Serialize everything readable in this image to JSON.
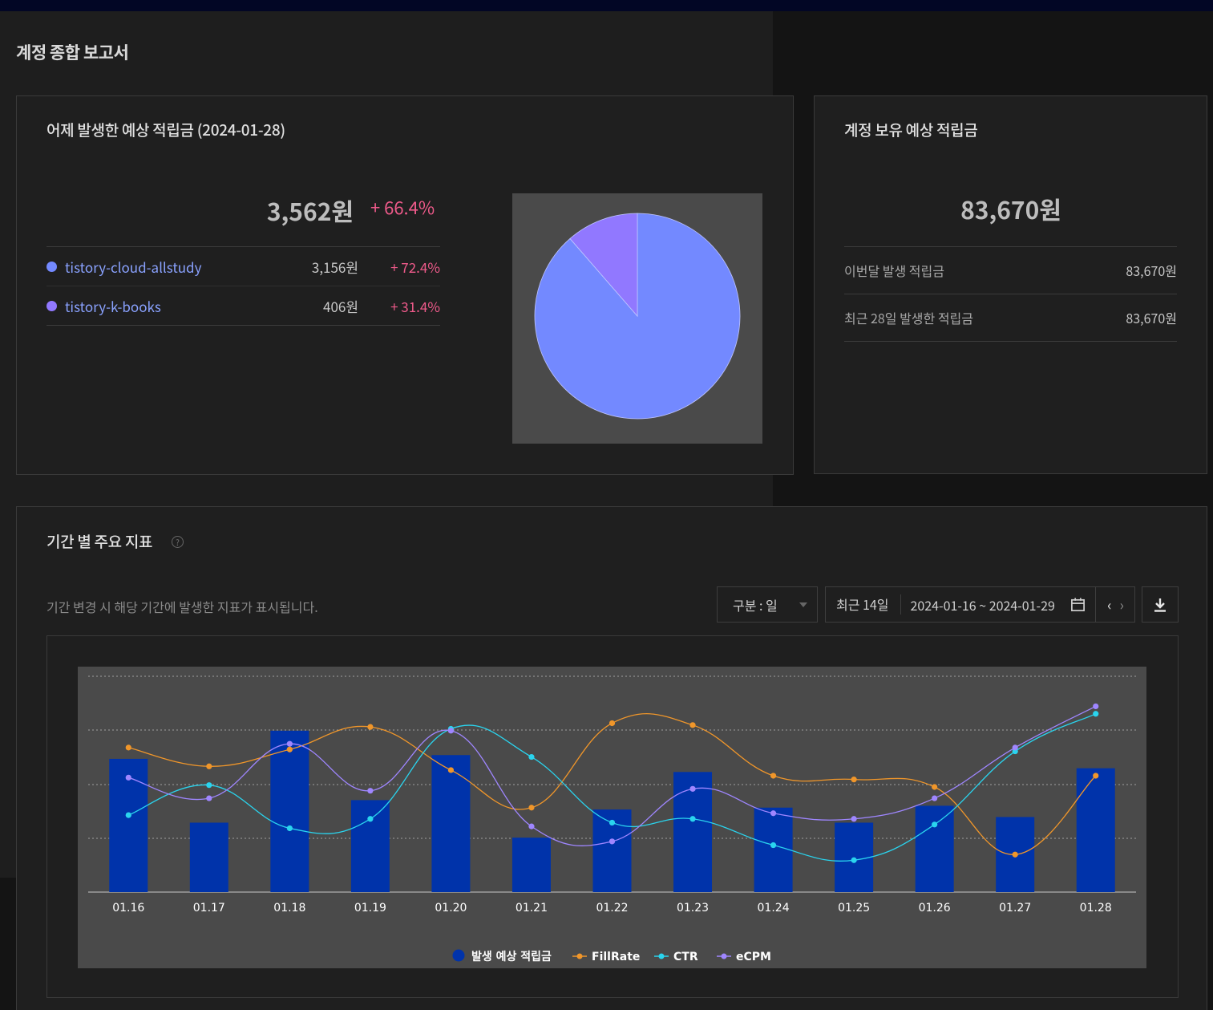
{
  "page": {
    "title": "계정 종합 보고서"
  },
  "yesterday": {
    "title": "어제 발생한 예상 적립금 (2024-01-28)",
    "amount": "3,562원",
    "change": "+ 66.4%",
    "sites": [
      {
        "name": "tistory-cloud-allstudy",
        "amount": "3,156원",
        "change": "+ 72.4%",
        "color": "#7389ff"
      },
      {
        "name": "tistory-k-books",
        "amount": "406원",
        "change": "+ 31.4%",
        "color": "#9178ff"
      }
    ],
    "pie": {
      "values": [
        3156,
        406
      ],
      "colors": [
        "#7389ff",
        "#9178ff"
      ]
    }
  },
  "holding": {
    "title": "계정 보유 예상 적립금",
    "amount": "83,670원",
    "rows": [
      {
        "label": "이번달 발생 적립금",
        "value": "83,670원"
      },
      {
        "label": "최근 28일 발생한 적립금",
        "value": "83,670원"
      }
    ]
  },
  "metrics": {
    "title": "기간 별 주요 지표",
    "help_icon": "question-circle-icon",
    "description": "기간 변경 시 해당 기간에 발생한 지표가 표시됩니다.",
    "granularity": "구분 : 일",
    "range_preset": "최근 14일",
    "range_dates": "2024-01-16 ~ 2024-01-29",
    "prev_glyph": "‹",
    "next_glyph": "›"
  },
  "chart_data": {
    "type": "bar",
    "categories": [
      "01.16",
      "01.17",
      "01.18",
      "01.19",
      "01.20",
      "01.21",
      "01.22",
      "01.23",
      "01.24",
      "01.25",
      "01.26",
      "01.27",
      "01.28"
    ],
    "series": [
      {
        "name": "발생 예상 적립금",
        "kind": "bar",
        "color": "#0033aa",
        "values": [
          71,
          37,
          86,
          49,
          73,
          29,
          44,
          64,
          45,
          37,
          46,
          40,
          66
        ]
      },
      {
        "name": "FillRate",
        "kind": "line",
        "color": "#f0962a",
        "values": [
          77,
          67,
          76,
          88,
          65,
          45,
          90,
          89,
          62,
          60,
          56,
          20,
          62
        ]
      },
      {
        "name": "CTR",
        "kind": "line",
        "color": "#2ad4ee",
        "values": [
          41,
          57,
          34,
          39,
          87,
          72,
          37,
          39,
          25,
          17,
          36,
          75,
          95
        ]
      },
      {
        "name": "eCPM",
        "kind": "line",
        "color": "#9f86ff",
        "values": [
          61,
          50,
          79,
          54,
          86,
          35,
          27,
          55,
          42,
          39,
          50,
          77,
          99
        ]
      }
    ],
    "ylim": [
      0,
      115
    ],
    "grid": true,
    "legend": "bottom"
  }
}
